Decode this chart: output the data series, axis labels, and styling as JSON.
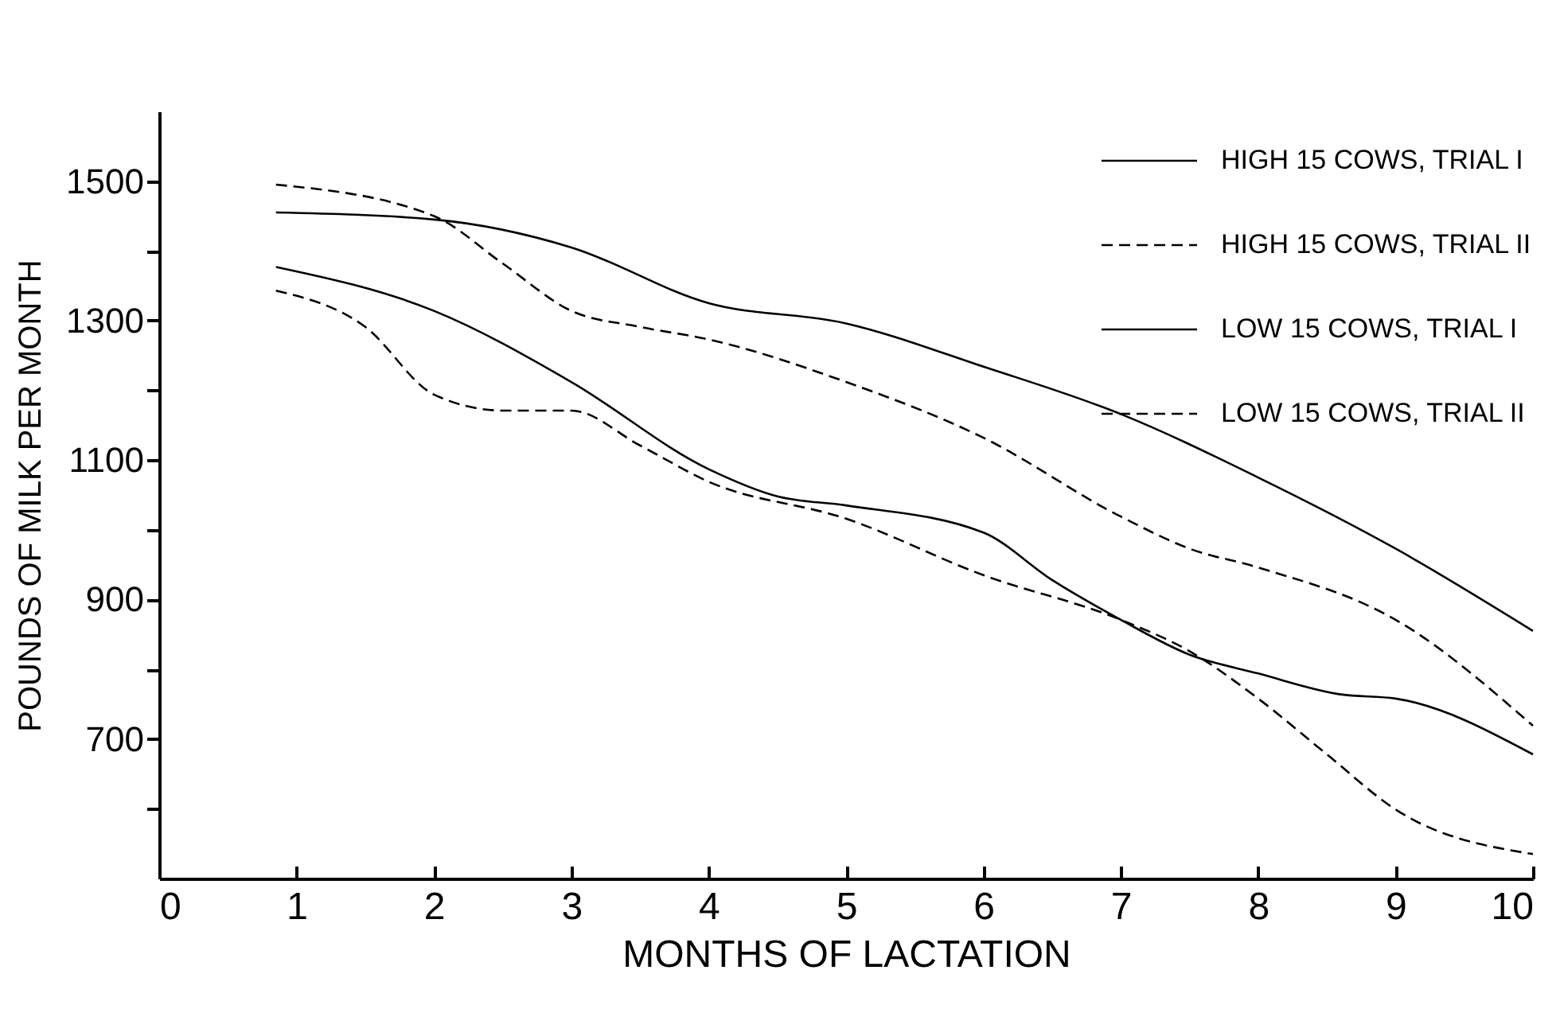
{
  "chart_data": {
    "type": "line",
    "xlabel": "MONTHS OF LACTATION",
    "ylabel": "POUNDS OF MILK PER MONTH",
    "xlim": [
      0,
      10
    ],
    "xticks": [
      0,
      1,
      2,
      3,
      4,
      5,
      6,
      7,
      8,
      9,
      10
    ],
    "ylim": [
      500,
      1600
    ],
    "yticks": [
      {
        "value": 600,
        "label": null
      },
      700,
      {
        "value": 800,
        "label": null
      },
      900,
      {
        "value": 1000,
        "label": null
      },
      1100,
      {
        "value": 1200,
        "label": null
      },
      1300,
      {
        "value": 1400,
        "label": null
      },
      1500
    ],
    "legend": "top right",
    "grid": false,
    "marker": "none",
    "series": [
      {
        "name": "HIGH 15 COWS, TRIAL I",
        "color": "#000000",
        "line_style": "solid",
        "x": [
          0.85,
          2,
          3,
          4,
          5,
          6,
          7,
          8,
          9,
          10
        ],
        "values": [
          1455,
          1445,
          1405,
          1325,
          1296,
          1234,
          1166,
          1075,
          973,
          855
        ]
      },
      {
        "name": "HIGH 15 COWS, TRIAL II",
        "color": "#000000",
        "line_style": "dashed",
        "x": [
          0.85,
          2,
          2.5,
          3,
          3.5,
          4,
          5,
          6,
          7,
          7.5,
          8,
          9,
          10
        ],
        "values": [
          1495,
          1450,
          1382,
          1314,
          1291,
          1273,
          1212,
          1132,
          1019,
          973,
          946,
          871,
          719
        ]
      },
      {
        "name": "LOW 15 COWS, TRIAL I",
        "color": "#000000",
        "line_style": "solid",
        "x": [
          0.85,
          2,
          3,
          4,
          4.5,
          5,
          6,
          6.5,
          7,
          7.5,
          8,
          8.6,
          9,
          10
        ],
        "values": [
          1377,
          1314,
          1212,
          1087,
          1048,
          1035,
          996,
          928,
          871,
          821,
          794,
          764,
          758,
          678
        ]
      },
      {
        "name": "LOW 15 COWS, TRIAL II",
        "color": "#000000",
        "line_style": "dashed",
        "x": [
          0.85,
          1.5,
          2,
          2.5,
          3,
          3.5,
          4,
          5,
          6,
          7,
          7.5,
          8,
          8.5,
          9,
          10
        ],
        "values": [
          1343,
          1291,
          1194,
          1171,
          1171,
          1121,
          1069,
          1016,
          935,
          871,
          826,
          758,
          678,
          599,
          535
        ]
      }
    ]
  }
}
